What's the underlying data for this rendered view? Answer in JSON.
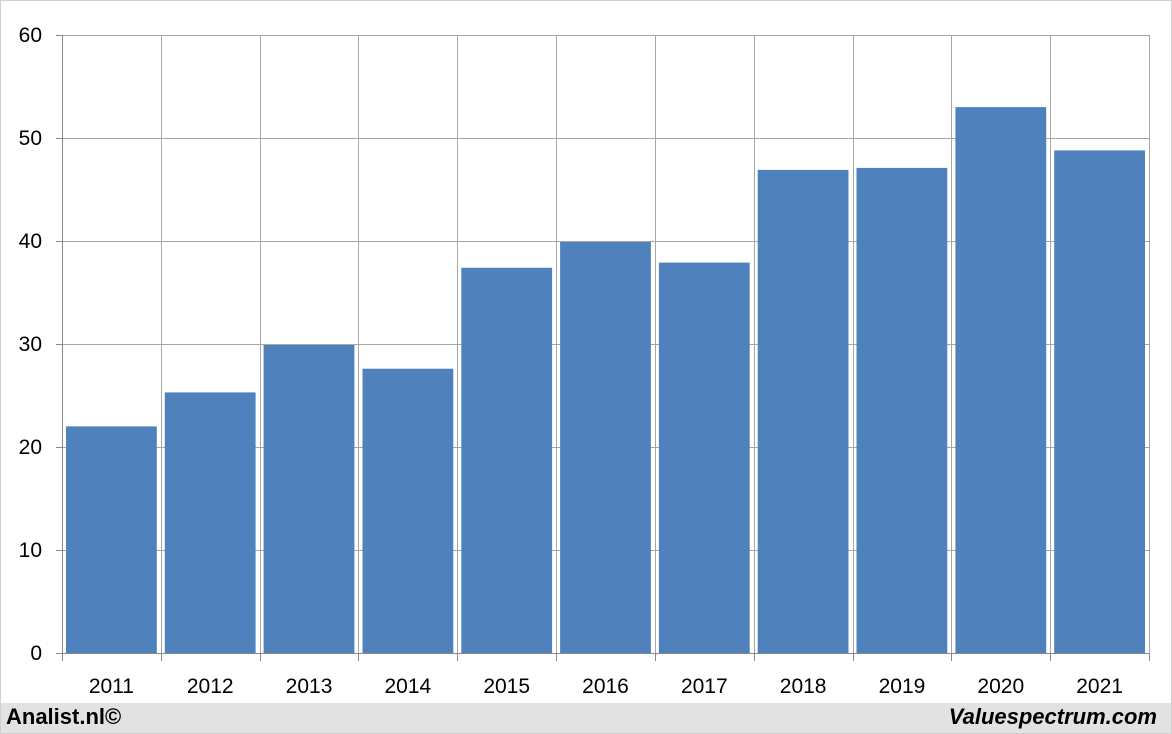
{
  "chart_data": {
    "type": "bar",
    "title": "",
    "xlabel": "",
    "ylabel": "",
    "categories": [
      "2011",
      "2012",
      "2013",
      "2014",
      "2015",
      "2016",
      "2017",
      "2018",
      "2019",
      "2020",
      "2021"
    ],
    "values": [
      22.0,
      25.3,
      29.9,
      27.6,
      37.4,
      39.9,
      37.9,
      46.9,
      47.1,
      53.0,
      48.8
    ],
    "ylim": [
      0,
      60
    ],
    "yticks": [
      0,
      10,
      20,
      30,
      40,
      50,
      60
    ],
    "grid": true,
    "bar_color": "#4f81bd",
    "grid_color": "#a6a6a6"
  },
  "footer": {
    "left_text": "Analist.nl©",
    "right_text": "Valuespectrum.com"
  }
}
